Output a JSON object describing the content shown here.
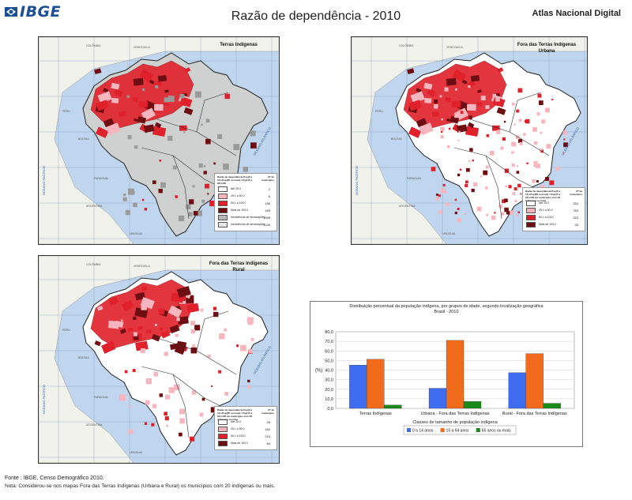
{
  "header": {
    "logo_text": "IBGE",
    "title": "Razão de dependência - 2010",
    "brand": "Atlas Nacional Digital"
  },
  "maps": [
    {
      "id": "terras",
      "title": "Terras Indígenas",
      "legend_title": "Razão de dependência Pop(0 a 14)+Pop(65 ou mais) / Pop(15 a 64)×100",
      "legend_count_header": "Nº de municípios",
      "classes": [
        {
          "label": "Até 25,0",
          "count": "2",
          "color": "#ffffff"
        },
        {
          "label": "25,1 a 50,0",
          "count": "6",
          "color": "#f7b6bd"
        },
        {
          "label": "50,1 a 100,0",
          "count": "158",
          "color": "#e0202a"
        },
        {
          "label": "Mais de 100,0",
          "count": "165",
          "color": "#6e0e12"
        },
        {
          "label": "Inexistência de declarações de indígenas no município",
          "count": "1598",
          "color": "#b9b9b9"
        },
        {
          "label": "Inexistência de declarações de indígenas em Terras Indígenas",
          "count": "4135",
          "color": "#e6e6e6"
        }
      ]
    },
    {
      "id": "urbana",
      "title": "Fora das Terras Indígenas\nUrbana",
      "legend_title": "Razão de dependência Pop(0 a 14)+Pop(65 ou mais) / Pop(15 a 64)×100 em municípios com 20 indígenas ou mais",
      "legend_count_header": "Nº de municípios",
      "classes": [
        {
          "label": "Até 25,0",
          "count": "254",
          "color": "#ffffff"
        },
        {
          "label": "25,1 a 50,0",
          "count": "783",
          "color": "#f7b6bd"
        },
        {
          "label": "50,1 a 100,0",
          "count": "323",
          "color": "#e0202a"
        },
        {
          "label": "Mais de 100,0",
          "count": "33",
          "color": "#6e0e12"
        }
      ]
    },
    {
      "id": "rural",
      "title": "Fora das Terras Indígenas\nRural",
      "legend_title": "Razão de dependência Pop(0 a 14)+Pop(65 ou mais) / Pop(15 a 64)×100 em municípios com 20 indígenas ou mais",
      "legend_count_header": "Nº de municípios",
      "classes": [
        {
          "label": "Até 25,0",
          "count": "26",
          "color": "#ffffff"
        },
        {
          "label": "25,1 a 50,0",
          "count": "160",
          "color": "#f7b6bd"
        },
        {
          "label": "50,1 a 100,0",
          "count": "215",
          "color": "#e0202a"
        },
        {
          "label": "Mais de 100,0",
          "count": "84",
          "color": "#6e0e12"
        }
      ]
    }
  ],
  "map_labels": {
    "ocean_pacific": "OCEANO PACÍFICO",
    "ocean_atlantic": "OCEANO ATLÂNTICO",
    "countries": [
      "COLÔMBIA",
      "VENEZUELA",
      "PERU",
      "BOLÍVIA",
      "PARAGUAI",
      "ARGENTINA",
      "URUGUAI"
    ]
  },
  "chart_data": {
    "type": "bar",
    "title": "Distribuição percentual da população indígena, por grupos de idade, segundo localização geográfica\nBrasil - 2010",
    "ylabel": "(%)",
    "xlabel": "Classes de tamanho de população indígena",
    "ylim": [
      0,
      80
    ],
    "yticks": [
      "0,0",
      "10,0",
      "20,0",
      "30,0",
      "40,0",
      "50,0",
      "60,0",
      "70,0",
      "80,0"
    ],
    "categories": [
      "Terras Indígenas",
      "Urbana - Fora das Terras Indígenas",
      "Rural - Fora das Terras Indígenas"
    ],
    "series": [
      {
        "name": "0 a 14 anos",
        "color": "#3f6df0",
        "values": [
          45.2,
          21.0,
          37.3
        ]
      },
      {
        "name": "15 a 64 anos",
        "color": "#f06c1c",
        "values": [
          51.3,
          71.0,
          57.2
        ]
      },
      {
        "name": "65 anos ou mais",
        "color": "#1a8a1a",
        "values": [
          3.5,
          7.2,
          5.3
        ]
      }
    ],
    "grid": true,
    "legend": "bottom"
  },
  "footer": {
    "source": "Fonte : IBGE, Censo Demográfico 2010.",
    "note": "Nota: Considerou-se nos mapas Fora das Terras Indígenas (Urbana e Rural) os municípios com 20 indígenas ou mais."
  }
}
